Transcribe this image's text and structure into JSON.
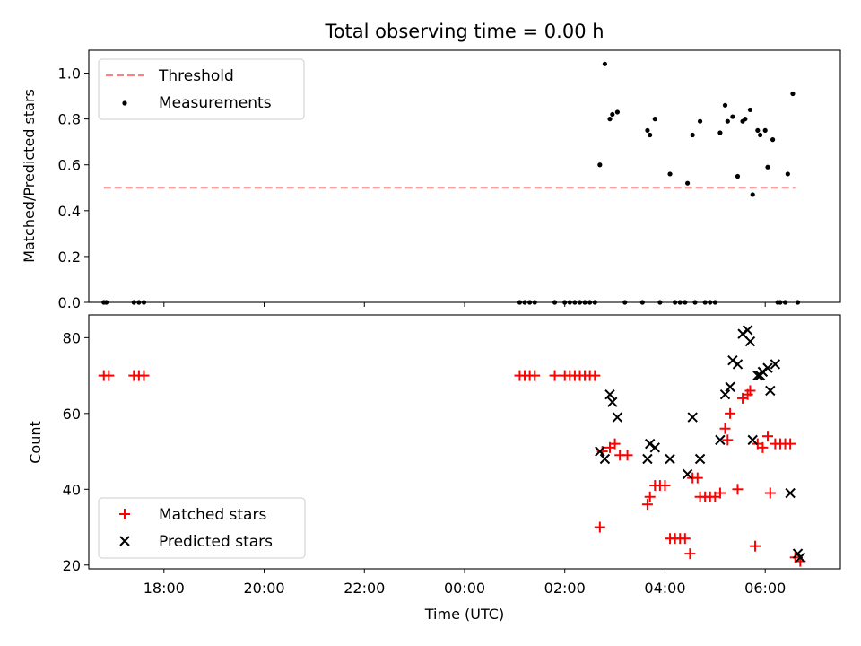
{
  "title": "Total observing time = 0.00 h",
  "xlabel": "Time (UTC)",
  "x_ticks": [
    "18:00",
    "20:00",
    "22:00",
    "00:00",
    "02:00",
    "04:00",
    "06:00"
  ],
  "colors": {
    "threshold": "#ff7f7f",
    "measurement": "#000000",
    "matched": "#ff0000",
    "predicted": "#000000"
  },
  "chart_data": [
    {
      "type": "scatter",
      "panel": "top",
      "ylabel": "Matched/Predicted stars",
      "xlim": [
        "16:30",
        "07:30"
      ],
      "ylim": [
        0,
        1.1
      ],
      "y_ticks": [
        "0.0",
        "0.2",
        "0.4",
        "0.6",
        "0.8",
        "1.0"
      ],
      "grid": false,
      "legend": "upper left",
      "legend_entries": [
        "Threshold",
        "Measurements"
      ],
      "threshold": {
        "name": "Threshold",
        "value": 0.5,
        "x_from": "16:48",
        "x_to": "06:36",
        "style": "dashed"
      },
      "series": [
        {
          "name": "Measurements",
          "points": [
            [
              "16:48",
              0
            ],
            [
              "16:51",
              0
            ],
            [
              "17:24",
              0
            ],
            [
              "17:30",
              0
            ],
            [
              "17:36",
              0
            ],
            [
              "01:06",
              0
            ],
            [
              "01:12",
              0
            ],
            [
              "01:18",
              0
            ],
            [
              "01:24",
              0
            ],
            [
              "01:48",
              0
            ],
            [
              "02:00",
              0
            ],
            [
              "02:06",
              0
            ],
            [
              "02:12",
              0
            ],
            [
              "02:18",
              0
            ],
            [
              "02:24",
              0
            ],
            [
              "02:30",
              0
            ],
            [
              "02:36",
              0
            ],
            [
              "02:42",
              0.6
            ],
            [
              "02:48",
              1.04
            ],
            [
              "02:54",
              0.8
            ],
            [
              "02:57",
              0.82
            ],
            [
              "03:03",
              0.83
            ],
            [
              "03:12",
              0
            ],
            [
              "03:33",
              0
            ],
            [
              "03:39",
              0.75
            ],
            [
              "03:42",
              0.73
            ],
            [
              "03:48",
              0.8
            ],
            [
              "03:54",
              0
            ],
            [
              "04:06",
              0.56
            ],
            [
              "04:12",
              0
            ],
            [
              "04:18",
              0
            ],
            [
              "04:24",
              0
            ],
            [
              "04:27",
              0.52
            ],
            [
              "04:33",
              0.73
            ],
            [
              "04:36",
              0
            ],
            [
              "04:42",
              0.79
            ],
            [
              "04:48",
              0
            ],
            [
              "04:54",
              0
            ],
            [
              "05:00",
              0
            ],
            [
              "05:06",
              0.74
            ],
            [
              "05:12",
              0.86
            ],
            [
              "05:15",
              0.79
            ],
            [
              "05:21",
              0.81
            ],
            [
              "05:27",
              0.55
            ],
            [
              "05:33",
              0.79
            ],
            [
              "05:36",
              0.8
            ],
            [
              "05:42",
              0.84
            ],
            [
              "05:45",
              0.47
            ],
            [
              "05:51",
              0.75
            ],
            [
              "05:54",
              0.73
            ],
            [
              "06:00",
              0.75
            ],
            [
              "06:03",
              0.59
            ],
            [
              "06:09",
              0.71
            ],
            [
              "06:15",
              0
            ],
            [
              "06:18",
              0
            ],
            [
              "06:24",
              0
            ],
            [
              "06:27",
              0.56
            ],
            [
              "06:33",
              0.91
            ],
            [
              "06:39",
              0
            ]
          ]
        }
      ]
    },
    {
      "type": "scatter",
      "panel": "bottom",
      "ylabel": "Count",
      "xlabel": "Time (UTC)",
      "xlim": [
        "16:30",
        "07:30"
      ],
      "ylim": [
        19,
        86
      ],
      "y_ticks": [
        "20",
        "40",
        "60",
        "80"
      ],
      "grid": false,
      "legend": "lower left",
      "legend_entries": [
        "Matched stars",
        "Predicted stars"
      ],
      "series": [
        {
          "name": "Matched stars",
          "marker": "+",
          "points": [
            [
              "16:48",
              70
            ],
            [
              "16:54",
              70
            ],
            [
              "17:24",
              70
            ],
            [
              "17:30",
              70
            ],
            [
              "17:36",
              70
            ],
            [
              "01:06",
              70
            ],
            [
              "01:12",
              70
            ],
            [
              "01:18",
              70
            ],
            [
              "01:24",
              70
            ],
            [
              "01:48",
              70
            ],
            [
              "02:00",
              70
            ],
            [
              "02:06",
              70
            ],
            [
              "02:12",
              70
            ],
            [
              "02:18",
              70
            ],
            [
              "02:24",
              70
            ],
            [
              "02:30",
              70
            ],
            [
              "02:36",
              70
            ],
            [
              "02:42",
              30
            ],
            [
              "02:45",
              50
            ],
            [
              "02:54",
              51
            ],
            [
              "03:00",
              52
            ],
            [
              "03:06",
              49
            ],
            [
              "03:15",
              49
            ],
            [
              "03:39",
              36
            ],
            [
              "03:42",
              38
            ],
            [
              "03:48",
              41
            ],
            [
              "03:54",
              41
            ],
            [
              "04:00",
              41
            ],
            [
              "04:06",
              27
            ],
            [
              "04:12",
              27
            ],
            [
              "04:18",
              27
            ],
            [
              "04:24",
              27
            ],
            [
              "04:30",
              23
            ],
            [
              "04:33",
              43
            ],
            [
              "04:39",
              43
            ],
            [
              "04:42",
              38
            ],
            [
              "04:48",
              38
            ],
            [
              "04:54",
              38
            ],
            [
              "05:00",
              38
            ],
            [
              "05:06",
              39
            ],
            [
              "05:12",
              56
            ],
            [
              "05:15",
              53
            ],
            [
              "05:18",
              60
            ],
            [
              "05:27",
              40
            ],
            [
              "05:33",
              64
            ],
            [
              "05:39",
              65
            ],
            [
              "05:42",
              66
            ],
            [
              "05:48",
              25
            ],
            [
              "05:51",
              52
            ],
            [
              "05:57",
              51
            ],
            [
              "06:03",
              54
            ],
            [
              "06:06",
              39
            ],
            [
              "06:12",
              52
            ],
            [
              "06:18",
              52
            ],
            [
              "06:24",
              52
            ],
            [
              "06:30",
              52
            ],
            [
              "06:36",
              22
            ],
            [
              "06:42",
              21
            ]
          ]
        },
        {
          "name": "Predicted stars",
          "marker": "x",
          "points": [
            [
              "02:42",
              50
            ],
            [
              "02:48",
              48
            ],
            [
              "02:54",
              65
            ],
            [
              "02:57",
              63
            ],
            [
              "03:03",
              59
            ],
            [
              "03:39",
              48
            ],
            [
              "03:42",
              52
            ],
            [
              "03:48",
              51
            ],
            [
              "04:06",
              48
            ],
            [
              "04:27",
              44
            ],
            [
              "04:33",
              59
            ],
            [
              "04:42",
              48
            ],
            [
              "05:06",
              53
            ],
            [
              "05:12",
              65
            ],
            [
              "05:18",
              67
            ],
            [
              "05:21",
              74
            ],
            [
              "05:27",
              73
            ],
            [
              "05:33",
              81
            ],
            [
              "05:39",
              82
            ],
            [
              "05:42",
              79
            ],
            [
              "05:45",
              53
            ],
            [
              "05:51",
              70
            ],
            [
              "05:54",
              70
            ],
            [
              "05:57",
              71
            ],
            [
              "06:03",
              72
            ],
            [
              "06:06",
              66
            ],
            [
              "06:12",
              73
            ],
            [
              "06:30",
              39
            ],
            [
              "06:39",
              23
            ],
            [
              "06:42",
              22
            ]
          ]
        }
      ]
    }
  ]
}
